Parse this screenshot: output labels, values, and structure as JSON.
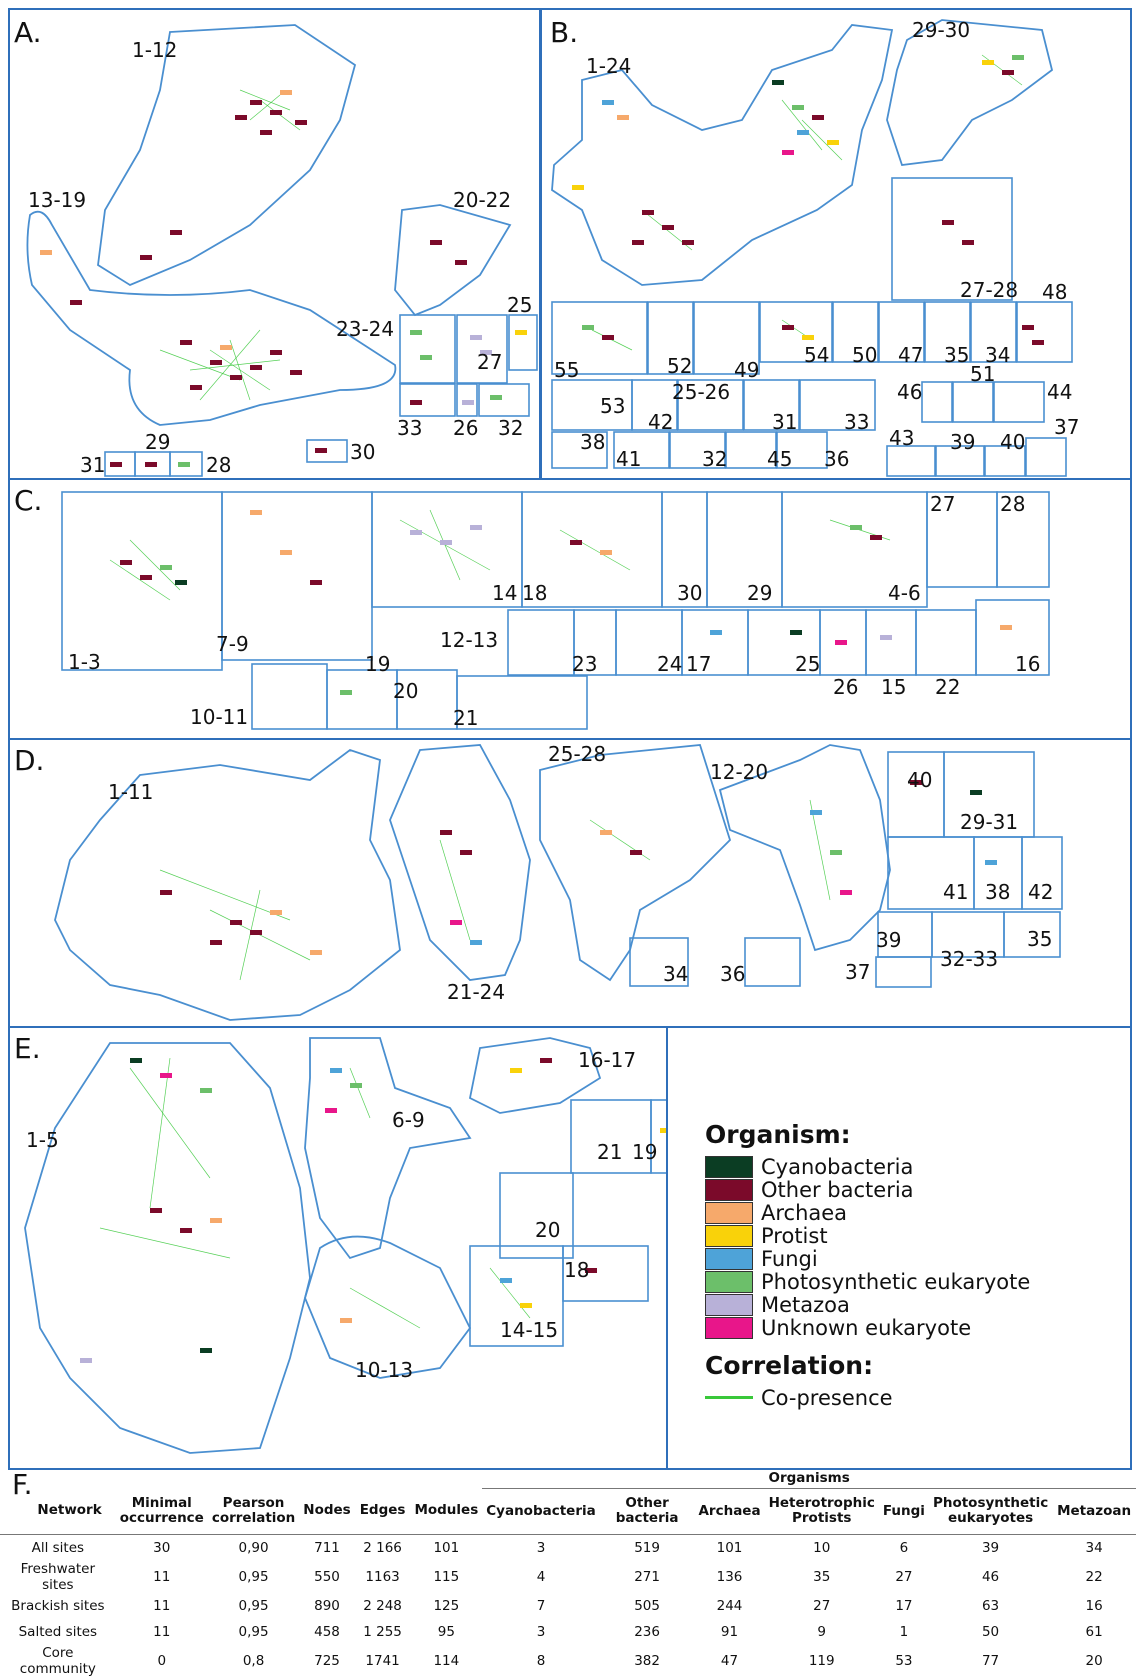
{
  "panels": [
    {
      "id": "A",
      "label": "A.",
      "modules": [
        "1-12",
        "13-19",
        "20-22",
        "23-24",
        "25",
        "27",
        "33",
        "26",
        "32",
        "29",
        "31",
        "28",
        "30"
      ]
    },
    {
      "id": "B",
      "label": "B.",
      "modules": [
        "1-24",
        "29-30",
        "27-28",
        "48",
        "55",
        "52",
        "49",
        "54",
        "50",
        "47",
        "35",
        "34",
        "51",
        "46",
        "44",
        "53",
        "42",
        "25-26",
        "31",
        "33",
        "37",
        "38",
        "41",
        "32",
        "45",
        "36",
        "43",
        "39",
        "40"
      ]
    },
    {
      "id": "C",
      "label": "C.",
      "modules": [
        "1-3",
        "7-9",
        "14",
        "18",
        "30",
        "29",
        "4-6",
        "27",
        "28",
        "12-13",
        "23",
        "24",
        "17",
        "25",
        "26",
        "15",
        "22",
        "16",
        "10-11",
        "19",
        "20",
        "21"
      ]
    },
    {
      "id": "D",
      "label": "D.",
      "modules": [
        "1-11",
        "21-24",
        "25-28",
        "12-20",
        "40",
        "29-31",
        "41",
        "38",
        "42",
        "39",
        "35",
        "37",
        "32-33",
        "34",
        "36"
      ]
    },
    {
      "id": "E",
      "label": "E.",
      "modules": [
        "1-5",
        "6-9",
        "16-17",
        "21",
        "19",
        "20",
        "18",
        "14-15",
        "10-13"
      ]
    }
  ],
  "legend": {
    "organism_title": "Organism:",
    "organisms": [
      {
        "name": "Cyanobacteria",
        "color": "#0b3d23"
      },
      {
        "name": "Other bacteria",
        "color": "#7b0a2a"
      },
      {
        "name": "Archaea",
        "color": "#f6a96b"
      },
      {
        "name": "Protist",
        "color": "#f9d20a"
      },
      {
        "name": "Fungi",
        "color": "#4ea3d8"
      },
      {
        "name": "Photosynthetic eukaryote",
        "color": "#6cbf6a"
      },
      {
        "name": "Metazoa",
        "color": "#b8b1d8"
      },
      {
        "name": "Unknown eukaryote",
        "color": "#e8168a"
      }
    ],
    "correlation_title": "Correlation:",
    "correlation_item": "Co-presence",
    "edge_color": "#39c83a"
  },
  "table": {
    "label": "F.",
    "organisms_header": "Organisms",
    "columns": [
      "Network",
      "Minimal occurrence",
      "Pearson correlation",
      "Nodes",
      "Edges",
      "Modules",
      "Cyanobacteria",
      "Other bacteria",
      "Archaea",
      "Heterotrophic Protists",
      "Fungi",
      "Photosynthetic eukaryotes",
      "Metazoan"
    ],
    "rows": [
      [
        "All sites",
        "30",
        "0,90",
        "711",
        "2 166",
        "101",
        "3",
        "519",
        "101",
        "10",
        "6",
        "39",
        "34"
      ],
      [
        "Freshwater sites",
        "11",
        "0,95",
        "550",
        "1163",
        "115",
        "4",
        "271",
        "136",
        "35",
        "27",
        "46",
        "22"
      ],
      [
        "Brackish sites",
        "11",
        "0,95",
        "890",
        "2 248",
        "125",
        "7",
        "505",
        "244",
        "27",
        "17",
        "63",
        "16"
      ],
      [
        "Salted sites",
        "11",
        "0,95",
        "458",
        "1 255",
        "95",
        "3",
        "236",
        "91",
        "9",
        "1",
        "50",
        "61"
      ],
      [
        "Core community",
        "0",
        "0,8",
        "725",
        "1741",
        "114",
        "8",
        "382",
        "47",
        "119",
        "53",
        "77",
        "20"
      ]
    ]
  }
}
